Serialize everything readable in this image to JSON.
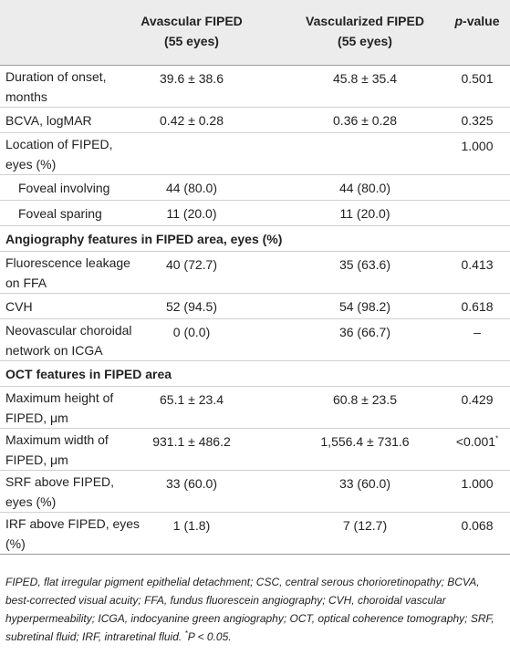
{
  "header": {
    "label_col": null,
    "avascular": {
      "line1": "Avascular FIPED",
      "line2": "(55 eyes)"
    },
    "vascularized": {
      "line1": "Vascularized FIPED",
      "line2": "(55 eyes)"
    },
    "p": {
      "italic": "p",
      "rest": "-value"
    }
  },
  "table": {
    "rows": [
      {
        "label": "Duration of onset, months",
        "avascular": "39.6 ± 38.6",
        "vascularized": "45.8 ± 35.4",
        "p": "0.501",
        "lines": 2
      },
      {
        "label": "BCVA, logMAR",
        "avascular": "0.42 ± 0.28",
        "vascularized": "0.36 ± 0.28",
        "p": "0.325",
        "lines": 1
      },
      {
        "label": "Location of FIPED, eyes (%)",
        "p": "1.000",
        "lines": 2,
        "subrows": [
          {
            "label": "Foveal involving",
            "avascular": "44 (80.0)",
            "vascularized": "44 (80.0)",
            "lines": 1
          },
          {
            "label": "Foveal sparing",
            "avascular": "11 (20.0)",
            "vascularized": "11 (20.0)",
            "lines": 1
          }
        ]
      },
      {
        "section": "Angiography features in FIPED area, eyes (%)"
      },
      {
        "label": "Fluorescence leakage on FFA",
        "avascular": "40 (72.7)",
        "vascularized": "35 (63.6)",
        "p": "0.413",
        "lines": 2
      },
      {
        "label": "CVH",
        "avascular": "52 (94.5)",
        "vascularized": "54 (98.2)",
        "p": "0.618",
        "lines": 1
      },
      {
        "label": "Neovascular choroidal network on ICGA",
        "avascular": "0 (0.0)",
        "vascularized": "36 (66.7)",
        "p": "–",
        "lines": 2
      },
      {
        "section": "OCT features in FIPED area"
      },
      {
        "label": "Maximum height of FIPED, μm",
        "avascular": "65.1 ± 23.4",
        "vascularized": "60.8 ± 23.5",
        "p": "0.429",
        "lines": 2
      },
      {
        "label": "Maximum width of FIPED, μm",
        "avascular": "931.1 ± 486.2",
        "vascularized": "1,556.4 ± 731.6",
        "p": "<0.001",
        "p_marker": "*",
        "lines": 2
      },
      {
        "label": "SRF above FIPED, eyes (%)",
        "avascular": "33 (60.0)",
        "vascularized": "33 (60.0)",
        "p": "1.000",
        "lines": 2
      },
      {
        "label": "IRF above FIPED, eyes (%)",
        "avascular": "1 (1.8)",
        "vascularized": "7 (12.7)",
        "p": "0.068",
        "lines": 2
      }
    ]
  },
  "footnote": {
    "text": "FIPED, flat irregular pigment epithelial detachment; CSC, central serous chorioretinopathy; BCVA, best-corrected visual acuity; FFA, fundus fluorescein angiography; CVH, choroidal vascular hyperpermeability; ICGA, indocyanine green angiography; OCT, optical coherence tomography; SRF, subretinal fluid; IRF, intraretinal fluid.",
    "marker": "*",
    "note": "P < 0.05."
  }
}
